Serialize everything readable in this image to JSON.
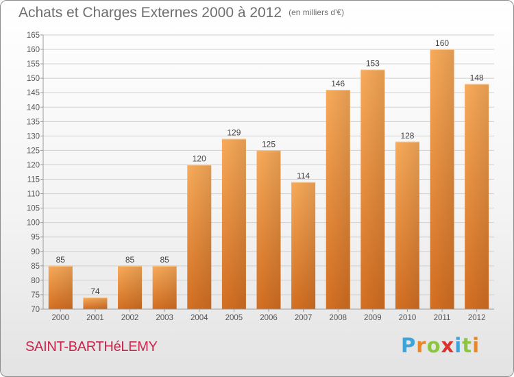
{
  "header": {
    "title": "Achats et Charges Externes 2000 à 2012",
    "unit": "(en milliers d'€)"
  },
  "footer": {
    "commune": "SAINT-BARTHéLEMY",
    "logo_letters": [
      "P",
      "r",
      "o",
      "x",
      "i",
      "t",
      "i"
    ]
  },
  "colors": {
    "bar_light": "#f7a654",
    "bar_dark": "#d97427",
    "grid": "#cfcfcf",
    "title": "#6f6f6f",
    "commune": "#c8264d"
  },
  "chart_data": {
    "type": "bar",
    "categories": [
      "2000",
      "2001",
      "2002",
      "2003",
      "2004",
      "2005",
      "2006",
      "2007",
      "2008",
      "2009",
      "2010",
      "2011",
      "2012"
    ],
    "values": [
      85,
      74,
      85,
      85,
      120,
      129,
      125,
      114,
      146,
      153,
      128,
      160,
      148
    ],
    "data_labels": [
      "85",
      "74",
      "85",
      "85",
      "120",
      "129",
      "125",
      "114",
      "146",
      "153",
      "128",
      "160",
      "148"
    ],
    "ylim": [
      70,
      165
    ],
    "yticks": [
      70,
      75,
      80,
      85,
      90,
      95,
      100,
      105,
      110,
      115,
      120,
      125,
      130,
      135,
      140,
      145,
      150,
      155,
      160,
      165
    ],
    "grid": true,
    "xlabel": "",
    "ylabel": ""
  }
}
